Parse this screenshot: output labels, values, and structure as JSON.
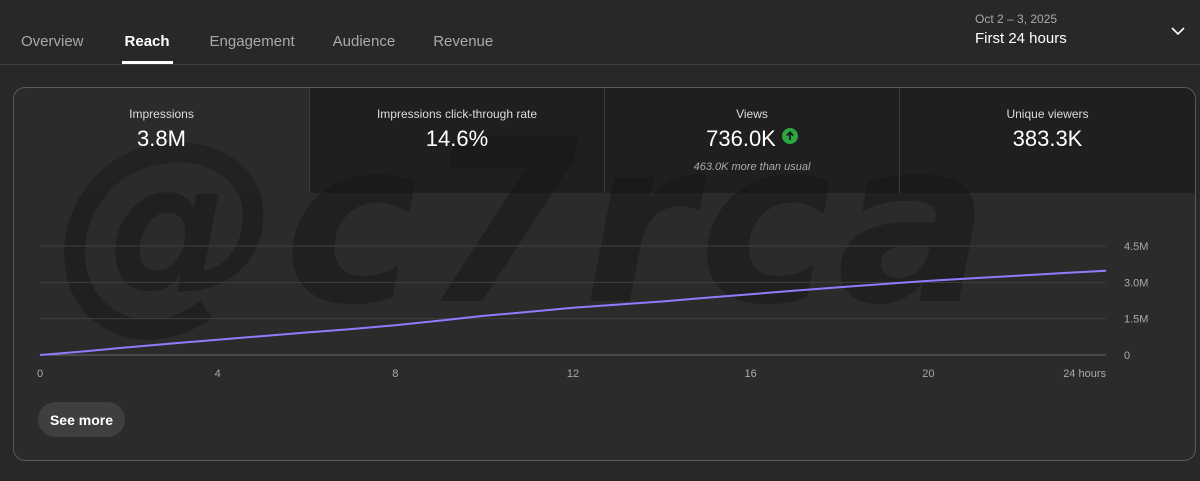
{
  "tabs": [
    {
      "label": "Overview",
      "active": false
    },
    {
      "label": "Reach",
      "active": true
    },
    {
      "label": "Engagement",
      "active": false
    },
    {
      "label": "Audience",
      "active": false
    },
    {
      "label": "Revenue",
      "active": false
    }
  ],
  "date_picker": {
    "range": "Oct 2 – 3, 2025",
    "label": "First 24 hours",
    "icon": "chevron-down-icon"
  },
  "metrics": [
    {
      "label": "Impressions",
      "value": "3.8M",
      "sub": ""
    },
    {
      "label": "Impressions click-through rate",
      "value": "14.6%",
      "sub": ""
    },
    {
      "label": "Views",
      "value": "736.0K",
      "sub": "463.0K more than usual",
      "trend_icon": "arrow-up-circle-icon",
      "trend_color": "#2ba640"
    },
    {
      "label": "Unique viewers",
      "value": "383.3K",
      "sub": ""
    }
  ],
  "watermark": "@c7rca",
  "see_more": "See more",
  "colors": {
    "background": "#282828",
    "line": "#8e7cff",
    "grid": "#3f3f3f",
    "axis_text": "#aaaaaa"
  },
  "chart_data": {
    "type": "line",
    "series": [
      {
        "x": [
          0,
          1,
          2,
          3,
          4,
          5,
          6,
          7,
          8,
          9,
          10,
          11,
          12,
          13,
          14,
          15,
          16,
          17,
          18,
          19,
          20,
          21,
          22,
          23,
          24
        ],
        "values": [
          0,
          0.15,
          0.32,
          0.48,
          0.63,
          0.78,
          0.93,
          1.07,
          1.23,
          1.42,
          1.62,
          1.78,
          1.95,
          2.08,
          2.21,
          2.36,
          2.51,
          2.66,
          2.8,
          2.93,
          3.06,
          3.17,
          3.27,
          3.38,
          3.48
        ]
      }
    ],
    "x_ticks": [
      "0",
      "4",
      "8",
      "12",
      "16",
      "20",
      "24 hours"
    ],
    "x_tick_values": [
      0,
      4,
      8,
      12,
      16,
      20,
      24
    ],
    "y_ticks": [
      "0",
      "1.5M",
      "3.0M",
      "4.5M"
    ],
    "y_tick_values": [
      0,
      1.5,
      3.0,
      4.5
    ],
    "xlim": [
      0,
      24
    ],
    "ylim": [
      0,
      4.5
    ],
    "grid": true
  }
}
